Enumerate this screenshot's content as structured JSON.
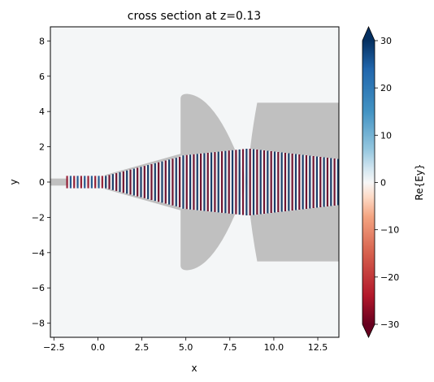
{
  "chart_data": {
    "type": "heatmap",
    "title": "cross section at z=0.13",
    "xlabel": "x",
    "ylabel": "y",
    "xlim": [
      -2.7,
      13.7
    ],
    "ylim": [
      -8.8,
      8.8
    ],
    "xticks": [
      -2.5,
      0.0,
      2.5,
      5.0,
      7.5,
      10.0,
      12.5
    ],
    "xtick_labels": [
      "−2.5",
      "0.0",
      "2.5",
      "5.0",
      "7.5",
      "10.0",
      "12.5"
    ],
    "yticks": [
      -8,
      -6,
      -4,
      -2,
      0,
      2,
      4,
      6,
      8
    ],
    "ytick_labels": [
      "−8",
      "−6",
      "−4",
      "−2",
      "0",
      "2",
      "4",
      "6",
      "8"
    ],
    "colorbar": {
      "label": "Re{Ey}",
      "colormap": "RdBu",
      "vmin": -30,
      "vmax": 30,
      "ticks": [
        -30,
        -20,
        -10,
        0,
        10,
        20,
        30
      ],
      "tick_labels": [
        "−30",
        "−20",
        "−10",
        "0",
        "10",
        "20",
        "30"
      ],
      "extend": "both"
    },
    "grid": false,
    "structure_color": "#c0c0c0",
    "structures": [
      {
        "name": "input waveguide",
        "x": [
          -2.7,
          0.8
        ],
        "y": [
          -0.2,
          0.2
        ]
      },
      {
        "name": "taper",
        "x": [
          0.4,
          4.7
        ],
        "y_start": [
          -0.4,
          0.4
        ],
        "y_end": [
          -1.6,
          1.6
        ]
      },
      {
        "name": "lens 1",
        "x": [
          4.7,
          8.5
        ],
        "y": [
          -5.0,
          5.0
        ],
        "curved_edge": "right"
      },
      {
        "name": "lens 2",
        "x": [
          8.5,
          13.7
        ],
        "y": [
          -4.5,
          4.5
        ],
        "curved_edge": "left"
      }
    ],
    "field": {
      "wavelength_in_x": 0.4,
      "peak_abs": 30,
      "propagation": "+x"
    }
  }
}
